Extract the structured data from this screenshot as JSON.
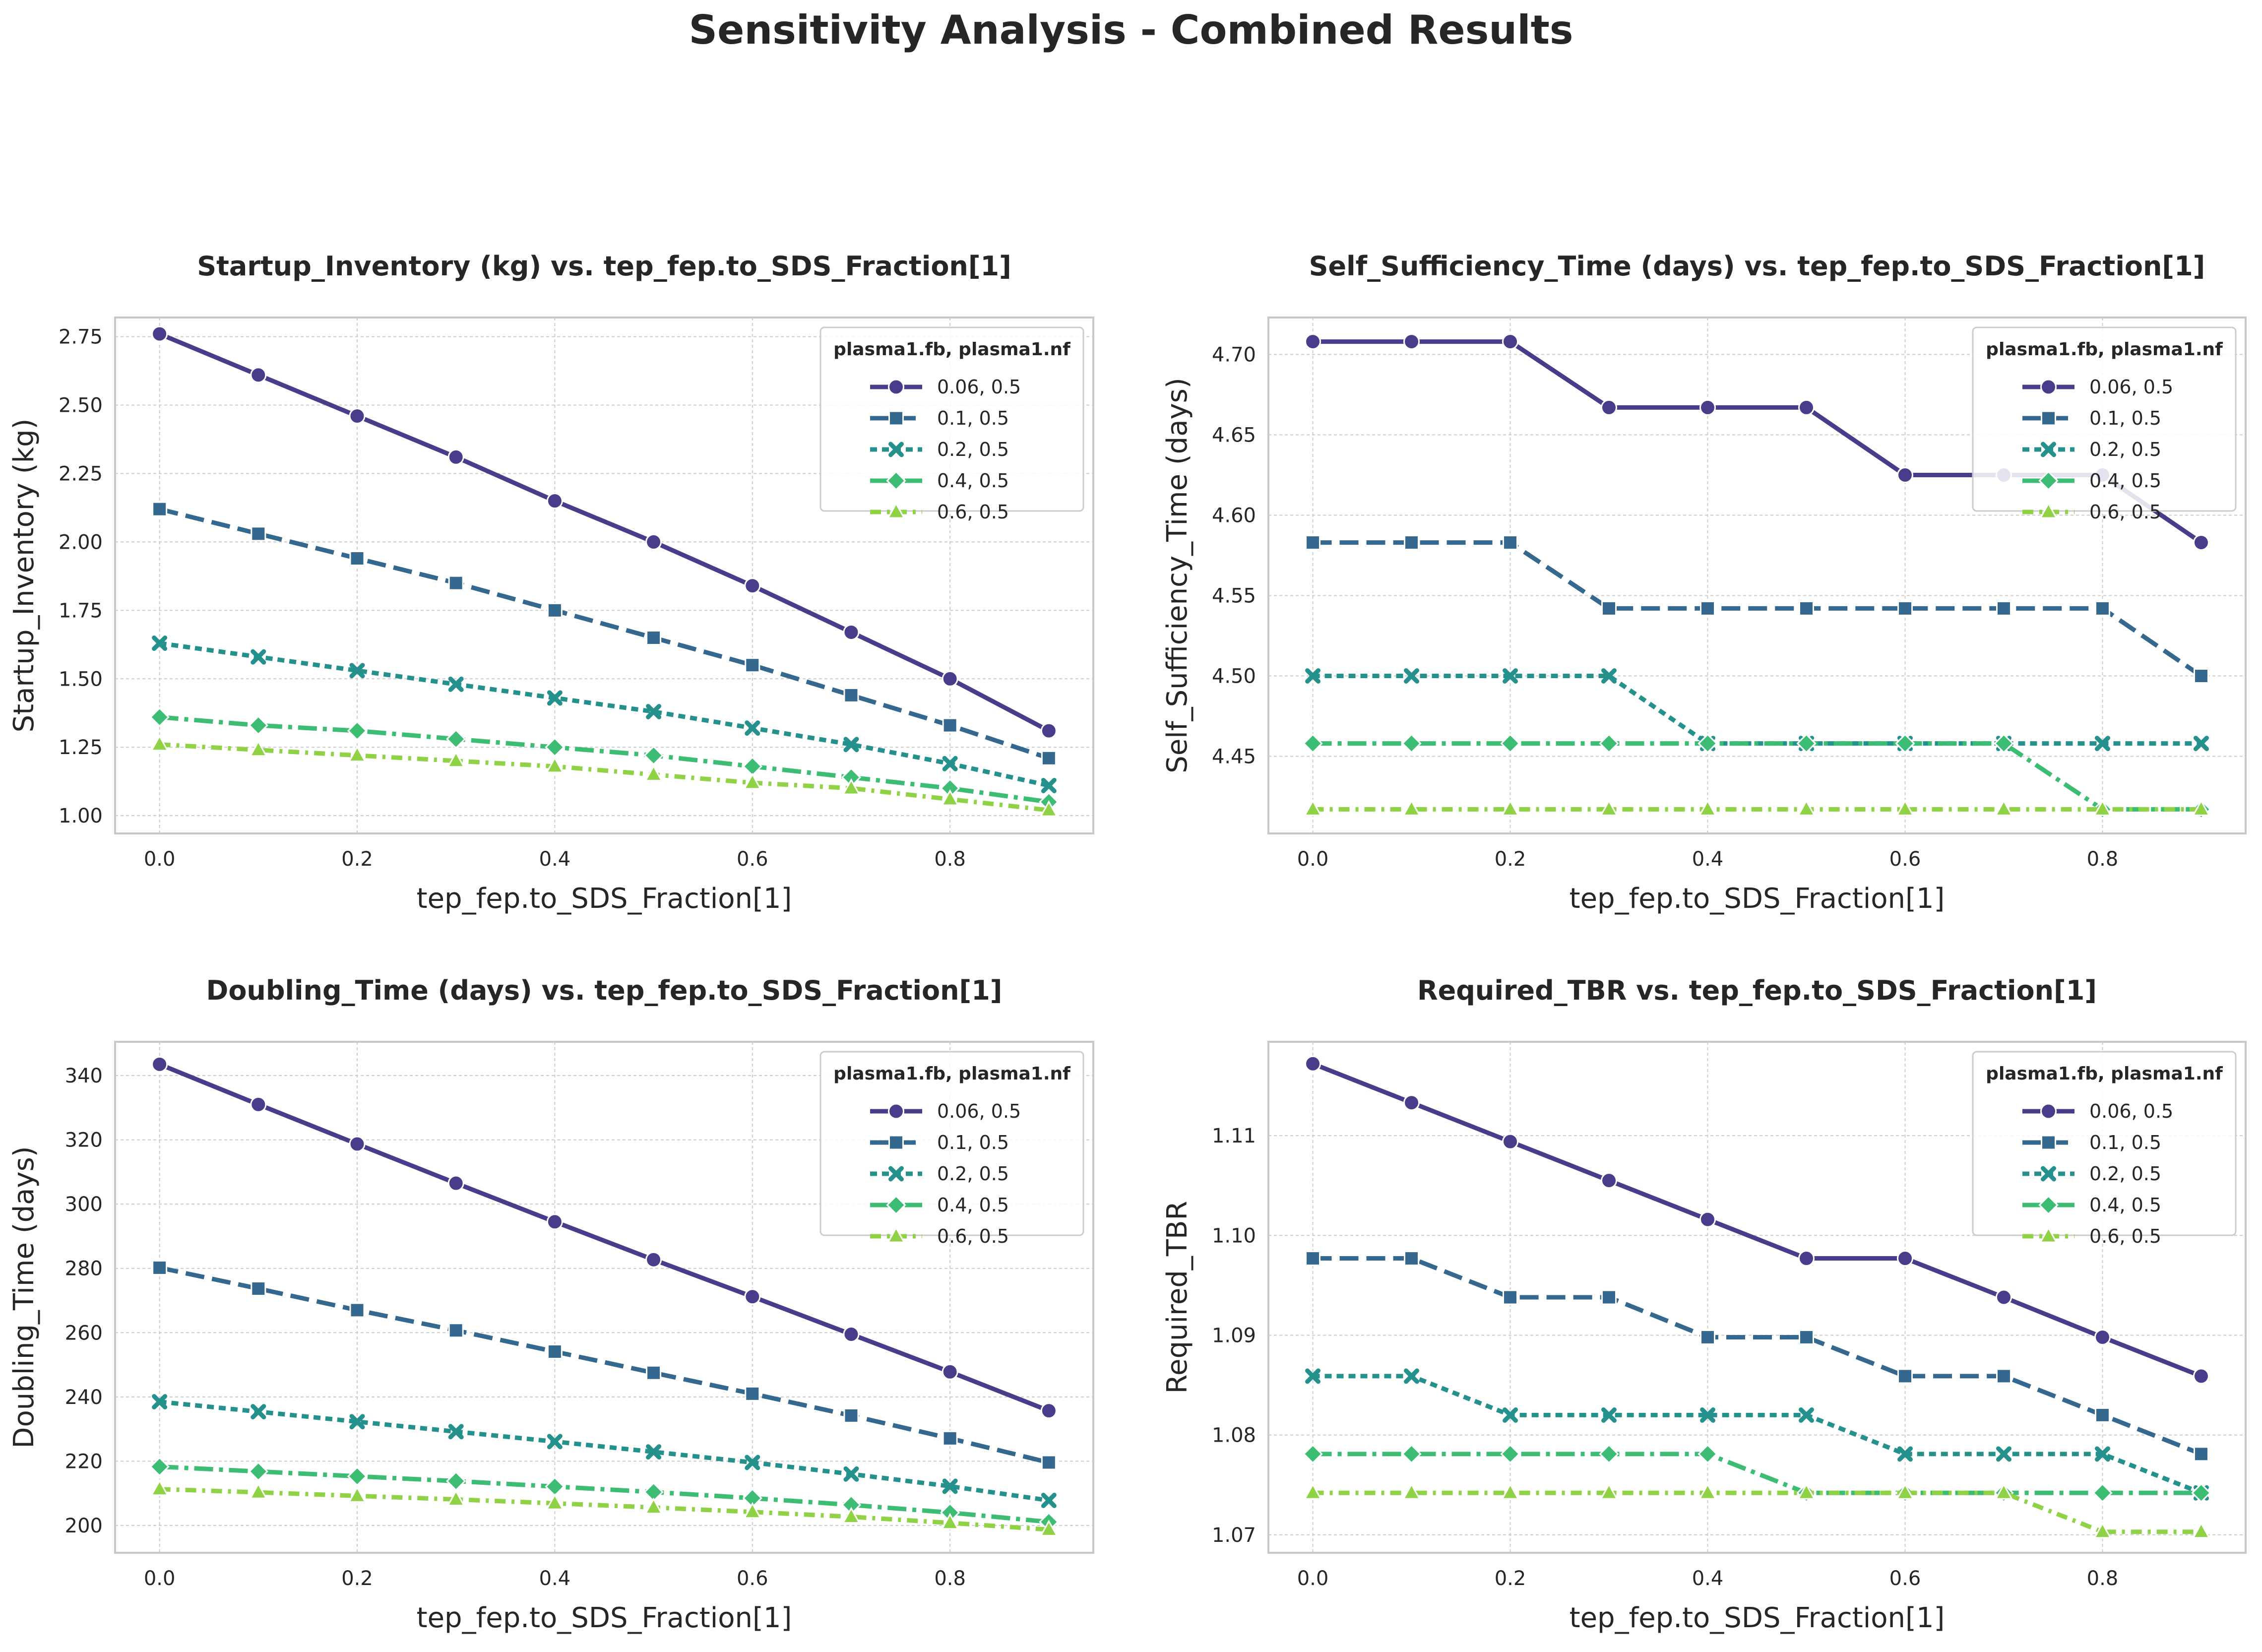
{
  "figure_title": "Sensitivity Analysis - Combined Results",
  "series_colors": [
    "#483d8b",
    "#35688e",
    "#24918c",
    "#3dbc74",
    "#8fd245"
  ],
  "chart_data": [
    {
      "type": "line",
      "title": "Startup_Inventory (kg) vs. tep_fep.to_SDS_Fraction[1]",
      "xlabel": "tep_fep.to_SDS_Fraction[1]",
      "ylabel": "Startup_Inventory (kg)",
      "x": [
        0.0,
        0.1,
        0.2,
        0.3,
        0.4,
        0.5,
        0.6,
        0.7,
        0.8,
        0.9
      ],
      "xticks": [
        "0.0",
        "0.2",
        "0.4",
        "0.6",
        "0.8"
      ],
      "yticks": [
        "1.00",
        "1.25",
        "1.50",
        "1.75",
        "2.00",
        "2.25",
        "2.50",
        "2.75"
      ],
      "ylim": [
        0.935,
        2.82
      ],
      "xlim": [
        -0.045,
        0.945
      ],
      "grid": true,
      "legend_title": "plasma1.fb, plasma1.nf",
      "legend_position": "top-right",
      "series": [
        {
          "name": "0.06, 0.5",
          "values": [
            2.76,
            2.61,
            2.46,
            2.31,
            2.15,
            2.0,
            1.84,
            1.67,
            1.5,
            1.31
          ]
        },
        {
          "name": "0.1, 0.5",
          "values": [
            2.12,
            2.03,
            1.94,
            1.85,
            1.75,
            1.65,
            1.55,
            1.44,
            1.33,
            1.21
          ]
        },
        {
          "name": "0.2, 0.5",
          "values": [
            1.63,
            1.58,
            1.53,
            1.48,
            1.43,
            1.38,
            1.32,
            1.26,
            1.19,
            1.11
          ]
        },
        {
          "name": "0.4, 0.5",
          "values": [
            1.36,
            1.33,
            1.31,
            1.28,
            1.25,
            1.22,
            1.18,
            1.14,
            1.1,
            1.05
          ]
        },
        {
          "name": "0.6, 0.5",
          "values": [
            1.26,
            1.24,
            1.22,
            1.2,
            1.18,
            1.15,
            1.12,
            1.1,
            1.06,
            1.02
          ]
        }
      ]
    },
    {
      "type": "line",
      "title": "Self_Sufficiency_Time (days) vs. tep_fep.to_SDS_Fraction[1]",
      "xlabel": "tep_fep.to_SDS_Fraction[1]",
      "ylabel": "Self_Sufficiency_Time (days)",
      "x": [
        0.0,
        0.1,
        0.2,
        0.3,
        0.4,
        0.5,
        0.6,
        0.7,
        0.8,
        0.9
      ],
      "xticks": [
        "0.0",
        "0.2",
        "0.4",
        "0.6",
        "0.8"
      ],
      "yticks": [
        "4.45",
        "4.50",
        "4.55",
        "4.60",
        "4.65",
        "4.70"
      ],
      "ylim": [
        4.402,
        4.723
      ],
      "xlim": [
        -0.045,
        0.945
      ],
      "grid": true,
      "legend_title": "plasma1.fb, plasma1.nf",
      "legend_position": "top-right",
      "series": [
        {
          "name": "0.06, 0.5",
          "values": [
            4.708,
            4.708,
            4.708,
            4.667,
            4.667,
            4.667,
            4.625,
            4.625,
            4.625,
            4.583
          ]
        },
        {
          "name": "0.1, 0.5",
          "values": [
            4.583,
            4.583,
            4.583,
            4.542,
            4.542,
            4.542,
            4.542,
            4.542,
            4.542,
            4.5
          ]
        },
        {
          "name": "0.2, 0.5",
          "values": [
            4.5,
            4.5,
            4.5,
            4.5,
            4.458,
            4.458,
            4.458,
            4.458,
            4.458,
            4.458
          ]
        },
        {
          "name": "0.4, 0.5",
          "values": [
            4.458,
            4.458,
            4.458,
            4.458,
            4.458,
            4.458,
            4.458,
            4.458,
            4.417,
            4.417
          ]
        },
        {
          "name": "0.6, 0.5",
          "values": [
            4.417,
            4.417,
            4.417,
            4.417,
            4.417,
            4.417,
            4.417,
            4.417,
            4.417,
            4.417
          ]
        }
      ]
    },
    {
      "type": "line",
      "title": "Doubling_Time (days) vs. tep_fep.to_SDS_Fraction[1]",
      "xlabel": "tep_fep.to_SDS_Fraction[1]",
      "ylabel": "Doubling_Time (days)",
      "x": [
        0.0,
        0.1,
        0.2,
        0.3,
        0.4,
        0.5,
        0.6,
        0.7,
        0.8,
        0.9
      ],
      "xticks": [
        "0.0",
        "0.2",
        "0.4",
        "0.6",
        "0.8"
      ],
      "yticks": [
        "200",
        "220",
        "240",
        "260",
        "280",
        "300",
        "320",
        "340"
      ],
      "ylim": [
        191.5,
        350.5
      ],
      "xlim": [
        -0.045,
        0.945
      ],
      "grid": true,
      "legend_title": "plasma1.fb, plasma1.nf",
      "legend_position": "top-right",
      "series": [
        {
          "name": "0.06, 0.5",
          "values": [
            343.5,
            331.0,
            318.7,
            306.5,
            294.5,
            282.7,
            271.2,
            259.5,
            247.8,
            235.7
          ]
        },
        {
          "name": "0.1, 0.5",
          "values": [
            280.2,
            273.7,
            267.0,
            260.7,
            254.1,
            247.5,
            241.0,
            234.2,
            227.1,
            219.6
          ]
        },
        {
          "name": "0.2, 0.5",
          "values": [
            238.5,
            235.4,
            232.3,
            229.2,
            226.1,
            222.9,
            219.6,
            216.0,
            212.2,
            207.8
          ]
        },
        {
          "name": "0.4, 0.5",
          "values": [
            218.3,
            216.8,
            215.3,
            213.8,
            212.1,
            210.4,
            208.5,
            206.4,
            204.0,
            201.1
          ]
        },
        {
          "name": "0.6, 0.5",
          "values": [
            211.3,
            210.3,
            209.2,
            208.1,
            206.9,
            205.6,
            204.2,
            202.7,
            200.8,
            198.7
          ]
        }
      ]
    },
    {
      "type": "line",
      "title": "Required_TBR vs. tep_fep.to_SDS_Fraction[1]",
      "xlabel": "tep_fep.to_SDS_Fraction[1]",
      "ylabel": "Required_TBR",
      "x": [
        0.0,
        0.1,
        0.2,
        0.3,
        0.4,
        0.5,
        0.6,
        0.7,
        0.8,
        0.9
      ],
      "xticks": [
        "0.0",
        "0.2",
        "0.4",
        "0.6",
        "0.8"
      ],
      "yticks": [
        "1.07",
        "1.08",
        "1.09",
        "1.10",
        "1.11"
      ],
      "ylim": [
        1.0682,
        1.1194
      ],
      "xlim": [
        -0.045,
        0.945
      ],
      "grid": true,
      "legend_title": "plasma1.fb, plasma1.nf",
      "legend_position": "top-right",
      "series": [
        {
          "name": "0.06, 0.5",
          "values": [
            1.1172,
            1.1133,
            1.1094,
            1.1055,
            1.1016,
            1.0977,
            1.0977,
            1.0938,
            1.0898,
            1.0859
          ]
        },
        {
          "name": "0.1, 0.5",
          "values": [
            1.0977,
            1.0977,
            1.0938,
            1.0938,
            1.0898,
            1.0898,
            1.0859,
            1.0859,
            1.082,
            1.0781
          ]
        },
        {
          "name": "0.2, 0.5",
          "values": [
            1.0859,
            1.0859,
            1.082,
            1.082,
            1.082,
            1.082,
            1.0781,
            1.0781,
            1.0781,
            1.0742
          ]
        },
        {
          "name": "0.4, 0.5",
          "values": [
            1.0781,
            1.0781,
            1.0781,
            1.0781,
            1.0781,
            1.0742,
            1.0742,
            1.0742,
            1.0742,
            1.0742
          ]
        },
        {
          "name": "0.6, 0.5",
          "values": [
            1.0742,
            1.0742,
            1.0742,
            1.0742,
            1.0742,
            1.0742,
            1.0742,
            1.0742,
            1.0703,
            1.0703
          ]
        }
      ]
    }
  ]
}
